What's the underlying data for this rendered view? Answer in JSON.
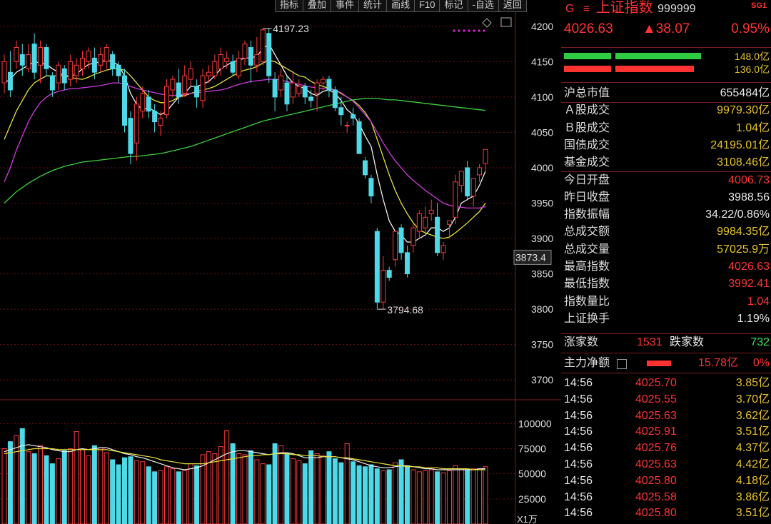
{
  "colors": {
    "up": "#ff3b3b",
    "down": "#4dd9e8",
    "ma1": "#f0f0f0",
    "ma2": "#e8e337",
    "ma3": "#d23be0",
    "ma4": "#3fd13f",
    "grid": "#6b1010"
  },
  "toolbar": [
    "指标",
    "叠加",
    "事件",
    "统计",
    "画线",
    "F10",
    "标记",
    "-自选",
    "返回"
  ],
  "header": {
    "marker": "G",
    "menu_icon": "menu-icon",
    "name": "上证指数",
    "code": "999999",
    "tag": "SG1",
    "price": "4026.63",
    "change": "▲38.07",
    "pct": "0.95%"
  },
  "bars": [
    {
      "value": "148.0亿",
      "color": "#2ecc40",
      "fill": 0.98
    },
    {
      "value": "136.0亿",
      "color": "#ff3232",
      "fill": 0.9
    }
  ],
  "stats": [
    {
      "label": "沪总市值",
      "value": "655484亿",
      "tone": "wht"
    },
    {
      "label": "Ａ股成交",
      "value": "9979.30亿",
      "tone": "yel"
    },
    {
      "label": "Ｂ股成交",
      "value": "1.04亿",
      "tone": "yel"
    },
    {
      "label": "国债成交",
      "value": "24195.01亿",
      "tone": "yel"
    },
    {
      "label": "基金成交",
      "value": "3108.46亿",
      "tone": "yel"
    },
    {
      "label": "今日开盘",
      "value": "4006.73",
      "tone": "red"
    },
    {
      "label": "昨日收盘",
      "value": "3988.56",
      "tone": "wht"
    },
    {
      "label": "指数振幅",
      "value": "34.22/0.86%",
      "tone": "wht"
    },
    {
      "label": "总成交额",
      "value": "9984.35亿",
      "tone": "yel"
    },
    {
      "label": "总成交量",
      "value": "57025.9万",
      "tone": "yel"
    },
    {
      "label": "最高指数",
      "value": "4026.63",
      "tone": "red"
    },
    {
      "label": "最低指数",
      "value": "3992.41",
      "tone": "red"
    },
    {
      "label": "指数量比",
      "value": "1.04",
      "tone": "red"
    },
    {
      "label": "上证换手",
      "value": "1.19%",
      "tone": "wht"
    }
  ],
  "breadth": {
    "up_label": "涨家数",
    "up": "1531",
    "down_label": "跌家数",
    "down": "732"
  },
  "flow": {
    "label": "主力净额",
    "icon": "calculator-icon",
    "value": "15.78亿",
    "pct": "0%"
  },
  "ticks": [
    {
      "time": "14:56",
      "price": "4025.70",
      "vol": "3.85亿"
    },
    {
      "time": "14:56",
      "price": "4025.55",
      "vol": "3.70亿"
    },
    {
      "time": "14:56",
      "price": "4025.63",
      "vol": "3.62亿"
    },
    {
      "time": "14:56",
      "price": "4025.91",
      "vol": "3.51亿"
    },
    {
      "time": "14:56",
      "price": "4025.76",
      "vol": "4.37亿"
    },
    {
      "time": "14:56",
      "price": "4025.63",
      "vol": "4.42亿"
    },
    {
      "time": "14:56",
      "price": "4025.80",
      "vol": "4.18亿"
    },
    {
      "time": "14:56",
      "price": "4025.58",
      "vol": "3.86亿"
    },
    {
      "time": "14:56",
      "price": "4025.80",
      "vol": "3.51亿"
    }
  ],
  "chart_data": {
    "type": "candlestick",
    "price_axis": {
      "min": 3680,
      "max": 4220,
      "ticks": [
        "4200",
        "4150",
        "4100",
        "4050",
        "4000",
        "3950",
        "3900",
        "3850",
        "3800",
        "3750",
        "3700"
      ]
    },
    "volume_axis": {
      "min": 0,
      "max": 118000,
      "ticks": [
        "100000",
        "75000",
        "50000",
        "25000"
      ],
      "unit": "X1万"
    },
    "current_marker": "3873.4",
    "high_label": "4197.23",
    "low_label": "3794.68",
    "candles": [
      [
        4120,
        4150,
        4105,
        4160
      ],
      [
        4135,
        4110,
        4100,
        4165
      ],
      [
        4150,
        4170,
        4140,
        4180
      ],
      [
        4160,
        4145,
        4130,
        4175
      ],
      [
        4140,
        4160,
        4135,
        4175
      ],
      [
        4175,
        4135,
        4125,
        4190
      ],
      [
        4145,
        4170,
        4120,
        4180
      ],
      [
        4170,
        4140,
        4130,
        4175
      ],
      [
        4130,
        4110,
        4100,
        4135
      ],
      [
        4120,
        4145,
        4110,
        4150
      ],
      [
        4140,
        4120,
        4110,
        4145
      ],
      [
        4125,
        4150,
        4115,
        4160
      ],
      [
        4130,
        4145,
        4120,
        4155
      ],
      [
        4140,
        4155,
        4130,
        4165
      ],
      [
        4150,
        4165,
        4140,
        4170
      ],
      [
        4155,
        4135,
        4125,
        4170
      ],
      [
        4145,
        4160,
        4135,
        4170
      ],
      [
        4150,
        4170,
        4140,
        4175
      ],
      [
        4160,
        4140,
        4130,
        4165
      ],
      [
        4145,
        4130,
        4120,
        4150
      ],
      [
        4130,
        4060,
        4050,
        4140
      ],
      [
        4070,
        4020,
        4005,
        4080
      ],
      [
        4035,
        4090,
        4010,
        4100
      ],
      [
        4080,
        4105,
        4070,
        4115
      ],
      [
        4100,
        4080,
        4070,
        4110
      ],
      [
        4080,
        4065,
        4050,
        4090
      ],
      [
        4060,
        4070,
        4045,
        4080
      ],
      [
        4075,
        4115,
        4070,
        4125
      ],
      [
        4110,
        4125,
        4100,
        4130
      ],
      [
        4120,
        4100,
        4090,
        4140
      ],
      [
        4105,
        4130,
        4100,
        4145
      ],
      [
        4125,
        4140,
        4115,
        4150
      ],
      [
        4115,
        4100,
        4085,
        4125
      ],
      [
        4095,
        4130,
        4085,
        4140
      ],
      [
        4130,
        4135,
        4120,
        4145
      ],
      [
        4130,
        4150,
        4125,
        4160
      ],
      [
        4140,
        4160,
        4130,
        4170
      ],
      [
        4150,
        4155,
        4140,
        4165
      ],
      [
        4150,
        4135,
        4130,
        4160
      ],
      [
        4130,
        4155,
        4125,
        4165
      ],
      [
        4155,
        4175,
        4145,
        4180
      ],
      [
        4170,
        4145,
        4120,
        4180
      ],
      [
        4145,
        4160,
        4135,
        4185
      ],
      [
        4150,
        4195,
        4145,
        4197
      ],
      [
        4190,
        4130,
        4120,
        4197
      ],
      [
        4125,
        4100,
        4080,
        4135
      ],
      [
        4110,
        4130,
        4100,
        4140
      ],
      [
        4120,
        4090,
        4080,
        4130
      ],
      [
        4100,
        4120,
        4090,
        4135
      ],
      [
        4105,
        4115,
        4100,
        4125
      ],
      [
        4115,
        4100,
        4090,
        4120
      ],
      [
        4100,
        4095,
        4085,
        4110
      ],
      [
        4105,
        4120,
        4080,
        4125
      ],
      [
        4120,
        4125,
        4110,
        4130
      ],
      [
        4125,
        4110,
        4100,
        4130
      ],
      [
        4110,
        4085,
        4080,
        4115
      ],
      [
        4085,
        4075,
        4060,
        4100
      ],
      [
        4060,
        4060,
        4050,
        4065
      ],
      [
        4075,
        4070,
        4060,
        4085
      ],
      [
        4065,
        4020,
        4020,
        4070
      ],
      [
        4010,
        3990,
        3985,
        4015
      ],
      [
        3985,
        3960,
        3950,
        3990
      ],
      [
        3910,
        3810,
        3800,
        3915
      ],
      [
        3810,
        3855,
        3800,
        3875
      ],
      [
        3855,
        3845,
        3840,
        3860
      ],
      [
        3870,
        3910,
        3860,
        3910
      ],
      [
        3915,
        3880,
        3870,
        3920
      ],
      [
        3880,
        3850,
        3845,
        3890
      ],
      [
        3890,
        3915,
        3880,
        3920
      ],
      [
        3910,
        3935,
        3900,
        3940
      ],
      [
        3915,
        3930,
        3905,
        3945
      ],
      [
        3935,
        3940,
        3925,
        3955
      ],
      [
        3930,
        3880,
        3875,
        3950
      ],
      [
        3880,
        3890,
        3870,
        3895
      ],
      [
        3920,
        3925,
        3900,
        3925
      ],
      [
        3930,
        3980,
        3920,
        3990
      ],
      [
        3975,
        3995,
        3965,
        3995
      ],
      [
        4000,
        3960,
        3955,
        4010
      ],
      [
        3960,
        3985,
        3945,
        3985
      ],
      [
        3990,
        4000,
        3980,
        4005
      ],
      [
        4006,
        4026,
        3992,
        4026
      ]
    ],
    "volume": [
      75000,
      82000,
      88000,
      95000,
      72000,
      70000,
      78000,
      68000,
      60000,
      65000,
      73000,
      75000,
      92000,
      74000,
      68000,
      78000,
      76000,
      71000,
      64000,
      59000,
      66000,
      67000,
      63000,
      62000,
      57000,
      52000,
      53000,
      57000,
      55000,
      52000,
      53000,
      60000,
      58000,
      69000,
      72000,
      70000,
      77000,
      93000,
      80000,
      70000,
      69000,
      73000,
      64000,
      60000,
      59000,
      80000,
      78000,
      70000,
      65000,
      63000,
      60000,
      73000,
      70000,
      68000,
      72000,
      65000,
      61000,
      80000,
      62000,
      58000,
      57000,
      59000,
      55000,
      53000,
      54000,
      61000,
      64000,
      58000,
      54000,
      52000,
      53000,
      54000,
      52000,
      51000,
      53000,
      58000,
      55000,
      54000,
      55000,
      55000,
      57000
    ],
    "ma": [
      {
        "values": [
          4120,
          4125,
          4135,
          4140,
          4145,
          4150,
          4148,
          4146,
          4140,
          4135,
          4130,
          4130,
          4132,
          4140,
          4146,
          4148,
          4150,
          4152,
          4150,
          4145,
          4130,
          4105,
          4090,
          4082,
          4085,
          4080,
          4075,
          4080,
          4090,
          4100,
          4105,
          4115,
          4115,
          4118,
          4122,
          4130,
          4140,
          4145,
          4150,
          4152,
          4155,
          4155,
          4158,
          4168,
          4175,
          4160,
          4145,
          4130,
          4120,
          4115,
          4112,
          4105,
          4102,
          4108,
          4110,
          4105,
          4095,
          4082,
          4075,
          4062,
          4045,
          4030,
          3990,
          3955,
          3925,
          3910,
          3905,
          3895,
          3895,
          3900,
          3905,
          3915,
          3915,
          3910,
          3915,
          3930,
          3950,
          3955,
          3960,
          3975,
          3995
        ]
      },
      {
        "values": [
          4040,
          4060,
          4080,
          4095,
          4110,
          4120,
          4125,
          4130,
          4130,
          4130,
          4130,
          4128,
          4126,
          4125,
          4128,
          4132,
          4135,
          4138,
          4140,
          4140,
          4138,
          4130,
          4120,
          4110,
          4100,
          4095,
          4092,
          4092,
          4095,
          4100,
          4102,
          4105,
          4108,
          4110,
          4112,
          4115,
          4120,
          4125,
          4130,
          4135,
          4138,
          4140,
          4143,
          4148,
          4152,
          4150,
          4145,
          4140,
          4135,
          4130,
          4128,
          4122,
          4118,
          4115,
          4112,
          4110,
          4105,
          4100,
          4095,
          4088,
          4078,
          4065,
          4040,
          4015,
          3990,
          3968,
          3950,
          3935,
          3922,
          3912,
          3908,
          3905,
          3902,
          3900,
          3902,
          3908,
          3915,
          3922,
          3930,
          3938,
          3950
        ]
      },
      {
        "values": [
          3980,
          4000,
          4025,
          4045,
          4065,
          4080,
          4092,
          4100,
          4105,
          4108,
          4110,
          4112,
          4112,
          4113,
          4114,
          4115,
          4116,
          4118,
          4120,
          4120,
          4118,
          4115,
          4112,
          4110,
          4108,
          4106,
          4104,
          4103,
          4102,
          4103,
          4104,
          4105,
          4106,
          4107,
          4108,
          4109,
          4110,
          4112,
          4115,
          4118,
          4120,
          4122,
          4123,
          4124,
          4125,
          4125,
          4124,
          4122,
          4120,
          4118,
          4116,
          4114,
          4113,
          4112,
          4111,
          4110,
          4106,
          4100,
          4094,
          4085,
          4075,
          4065,
          4050,
          4035,
          4022,
          4010,
          4000,
          3990,
          3982,
          3975,
          3968,
          3962,
          3956,
          3950,
          3947,
          3945,
          3944,
          3943,
          3943,
          3943,
          3945
        ]
      },
      {
        "values": [
          3950,
          3958,
          3966,
          3972,
          3978,
          3983,
          3988,
          3992,
          3996,
          3999,
          4002,
          4004,
          4006,
          4008,
          4009,
          4010,
          4011,
          4012,
          4013,
          4014,
          4015,
          4016,
          4016,
          4017,
          4018,
          4019,
          4020,
          4022,
          4024,
          4026,
          4028,
          4030,
          4033,
          4036,
          4039,
          4042,
          4045,
          4048,
          4051,
          4054,
          4057,
          4060,
          4063,
          4066,
          4068,
          4070,
          4072,
          4074,
          4076,
          4078,
          4080,
          4082,
          4084,
          4086,
          4088,
          4090,
          4092,
          4094,
          4096,
          4097,
          4098,
          4098,
          4098,
          4097,
          4096,
          4096,
          4095,
          4094,
          4093,
          4092,
          4091,
          4090,
          4089,
          4088,
          4087,
          4086,
          4085,
          4084,
          4083,
          4082,
          4081
        ]
      },
      {
        "values": [
          72000,
          74000,
          76000,
          78000,
          79000,
          78000,
          77000,
          76000,
          74000,
          73000,
          72000,
          72000,
          74000,
          75000,
          74000,
          75000,
          76000,
          76000,
          74000,
          72000,
          70000,
          69000,
          67000,
          66000,
          64000,
          62000,
          60000,
          58000,
          56000,
          55000,
          54000,
          55000,
          56000,
          58000,
          61000,
          64000,
          67000,
          70000,
          72000,
          73000,
          73000,
          72000,
          71000,
          70000,
          69000,
          70000,
          71000,
          71000,
          70000,
          68000,
          66000,
          66000,
          66000,
          67000,
          67000,
          67000,
          66000,
          65000,
          64000,
          62000,
          60000,
          58000,
          57000,
          56000,
          56000,
          57000,
          58000,
          58000,
          57000,
          56000,
          55000,
          55000,
          54000,
          54000,
          54000,
          54000,
          54000,
          54000,
          54000,
          55000,
          55000
        ]
      },
      {
        "values": [
          70000,
          71000,
          72000,
          73000,
          74000,
          75000,
          75000,
          75000,
          75000,
          74000,
          74000,
          74000,
          74000,
          74000,
          74000,
          74000,
          74000,
          74000,
          73000,
          72000,
          71000,
          70000,
          69000,
          68000,
          67000,
          66000,
          64000,
          63000,
          62000,
          61000,
          60000,
          60000,
          60000,
          60000,
          61000,
          62000,
          63000,
          64000,
          65000,
          66000,
          67000,
          68000,
          68000,
          69000,
          69000,
          70000,
          70000,
          70000,
          69000,
          69000,
          68000,
          68000,
          68000,
          67000,
          67000,
          67000,
          66000,
          66000,
          65000,
          64000,
          63000,
          62000,
          61000,
          60000,
          59000,
          58000,
          58000,
          57000,
          57000,
          57000,
          56000,
          56000,
          56000,
          55000,
          55000,
          55000,
          55000,
          55000,
          54000,
          54000,
          54000
        ]
      }
    ]
  }
}
